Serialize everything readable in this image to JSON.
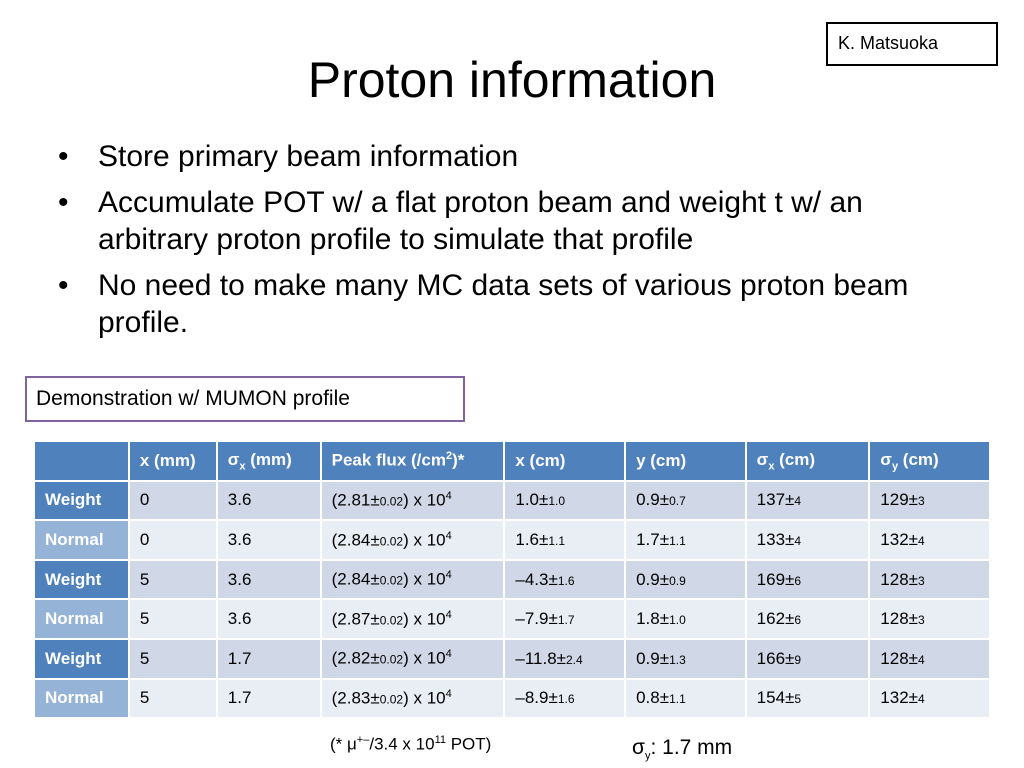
{
  "author": "K. Matsuoka",
  "title": "Proton information",
  "bullets": [
    "Store primary beam information",
    "Accumulate POT w/ a flat proton beam and weight t w/ an arbitrary proton profile to simulate that profile",
    "No need to make many MC data sets of various proton beam profile."
  ],
  "bullet_symbol": "•",
  "demo_label": "Demonstration w/ MUMON profile",
  "table": {
    "headers": {
      "x_mm": "x (mm)",
      "sigma_x_mm_sym": "σ",
      "sigma_x_mm_sub": "x",
      "sigma_x_mm_unit": " (mm)",
      "peak_flux_pre": "Peak flux (/cm",
      "peak_flux_sup": "2",
      "peak_flux_post": ")*",
      "x_cm": "x (cm)",
      "y_cm": "y (cm)",
      "sigma_x_cm_sym": "σ",
      "sigma_x_cm_sub": "x",
      "sigma_x_cm_unit": " (cm)",
      "sigma_y_cm_sym": "σ",
      "sigma_y_cm_sub": "y",
      "sigma_y_cm_unit": " (cm)"
    },
    "pm": "±",
    "flux_suffix": ") x 10",
    "flux_exp": "4",
    "rows": [
      {
        "label": "Weight",
        "x_mm": "0",
        "sigma_x_mm": "3.6",
        "flux": "2.81",
        "flux_err": "0.02",
        "x_cm": "1.0",
        "x_cm_err": "1.0",
        "y_cm": "0.9",
        "y_cm_err": "0.7",
        "sigma_x_cm": "137",
        "sigma_x_cm_err": "4",
        "sigma_y_cm": "129",
        "sigma_y_cm_err": "3"
      },
      {
        "label": "Normal",
        "x_mm": "0",
        "sigma_x_mm": "3.6",
        "flux": "2.84",
        "flux_err": "0.02",
        "x_cm": "1.6",
        "x_cm_err": "1.1",
        "y_cm": "1.7",
        "y_cm_err": "1.1",
        "sigma_x_cm": "133",
        "sigma_x_cm_err": "4",
        "sigma_y_cm": "132",
        "sigma_y_cm_err": "4"
      },
      {
        "label": "Weight",
        "x_mm": "5",
        "sigma_x_mm": "3.6",
        "flux": "2.84",
        "flux_err": "0.02",
        "x_cm": "–4.3",
        "x_cm_err": "1.6",
        "y_cm": "0.9",
        "y_cm_err": "0.9",
        "sigma_x_cm": "169",
        "sigma_x_cm_err": "6",
        "sigma_y_cm": "128",
        "sigma_y_cm_err": "3"
      },
      {
        "label": "Normal",
        "x_mm": "5",
        "sigma_x_mm": "3.6",
        "flux": "2.87",
        "flux_err": "0.02",
        "x_cm": "–7.9",
        "x_cm_err": "1.7",
        "y_cm": "1.8",
        "y_cm_err": "1.0",
        "sigma_x_cm": "162",
        "sigma_x_cm_err": "6",
        "sigma_y_cm": "128",
        "sigma_y_cm_err": "3"
      },
      {
        "label": "Weight",
        "x_mm": "5",
        "sigma_x_mm": "1.7",
        "flux": "2.82",
        "flux_err": "0.02",
        "x_cm": "–11.8",
        "x_cm_err": "2.4",
        "y_cm": "0.9",
        "y_cm_err": "1.3",
        "sigma_x_cm": "166",
        "sigma_x_cm_err": "9",
        "sigma_y_cm": "128",
        "sigma_y_cm_err": "4"
      },
      {
        "label": "Normal",
        "x_mm": "5",
        "sigma_x_mm": "1.7",
        "flux": "2.83",
        "flux_err": "0.02",
        "x_cm": "–8.9",
        "x_cm_err": "1.6",
        "y_cm": "0.8",
        "y_cm_err": "1.1",
        "sigma_x_cm": "154",
        "sigma_x_cm_err": "5",
        "sigma_y_cm": "132",
        "sigma_y_cm_err": "4"
      }
    ]
  },
  "footnote": {
    "prefix": "(* ",
    "mu": "μ",
    "mu_sup": "+–",
    "mid": "/3.4 x 10",
    "exp": "11",
    "suffix": " POT)"
  },
  "sigma_y_note": {
    "sym": "σ",
    "sub": "y",
    "text": ": 1.7 mm"
  }
}
